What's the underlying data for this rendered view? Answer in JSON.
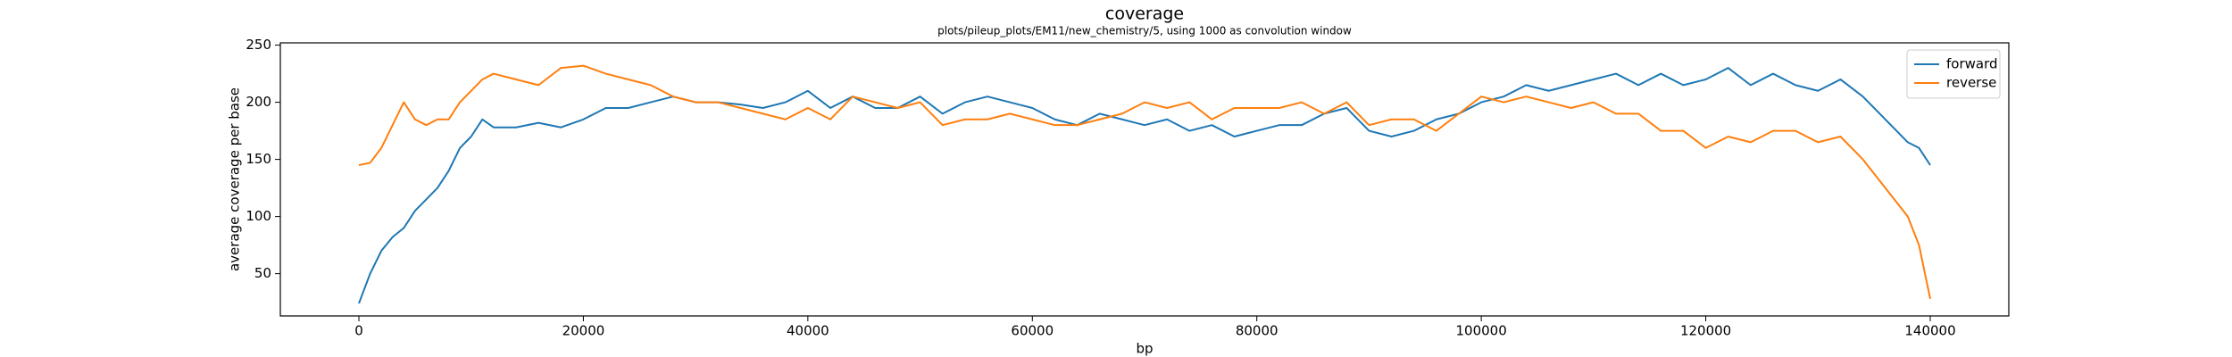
{
  "chart_data": {
    "type": "line",
    "title": "coverage",
    "subtitle": "plots/pileup_plots/EM11/new_chemistry/5, using 1000 as convolution window",
    "x_label": "bp",
    "y_label": "average coverage per base",
    "x": [
      0,
      1000,
      2000,
      3000,
      4000,
      5000,
      6000,
      7000,
      8000,
      9000,
      10000,
      11000,
      12000,
      14000,
      16000,
      18000,
      20000,
      22000,
      24000,
      26000,
      28000,
      30000,
      32000,
      34000,
      36000,
      38000,
      40000,
      42000,
      44000,
      46000,
      48000,
      50000,
      52000,
      54000,
      56000,
      58000,
      60000,
      62000,
      64000,
      66000,
      68000,
      70000,
      72000,
      74000,
      76000,
      78000,
      80000,
      82000,
      84000,
      86000,
      88000,
      90000,
      92000,
      94000,
      96000,
      98000,
      100000,
      102000,
      104000,
      106000,
      108000,
      110000,
      112000,
      114000,
      116000,
      118000,
      120000,
      122000,
      124000,
      126000,
      128000,
      130000,
      132000,
      134000,
      136000,
      138000,
      139000,
      140000
    ],
    "series": [
      {
        "name": "forward",
        "color": "#1f77b4",
        "values": [
          24,
          50,
          70,
          82,
          90,
          105,
          115,
          125,
          140,
          160,
          170,
          185,
          178,
          178,
          182,
          178,
          185,
          195,
          195,
          200,
          205,
          200,
          200,
          198,
          195,
          200,
          210,
          195,
          205,
          195,
          195,
          205,
          190,
          200,
          205,
          200,
          195,
          185,
          180,
          190,
          185,
          180,
          185,
          175,
          180,
          170,
          175,
          180,
          180,
          190,
          195,
          175,
          170,
          175,
          185,
          190,
          200,
          205,
          215,
          210,
          215,
          220,
          225,
          215,
          225,
          215,
          220,
          230,
          215,
          225,
          215,
          210,
          220,
          205,
          185,
          165,
          160,
          145
        ]
      },
      {
        "name": "reverse",
        "color": "#ff7f0e",
        "values": [
          145,
          147,
          160,
          180,
          200,
          185,
          180,
          185,
          185,
          200,
          210,
          220,
          225,
          220,
          215,
          230,
          232,
          225,
          220,
          215,
          205,
          200,
          200,
          195,
          190,
          185,
          195,
          185,
          205,
          200,
          195,
          200,
          180,
          185,
          185,
          190,
          185,
          180,
          180,
          185,
          190,
          200,
          195,
          200,
          185,
          195,
          195,
          195,
          200,
          190,
          200,
          180,
          185,
          185,
          175,
          190,
          205,
          200,
          205,
          200,
          195,
          200,
          190,
          190,
          175,
          175,
          160,
          170,
          165,
          175,
          175,
          165,
          170,
          150,
          125,
          100,
          75,
          28
        ]
      }
    ],
    "xlim": [
      -7000,
      147000
    ],
    "ylim": [
      13,
      252
    ],
    "xticks": [
      0,
      20000,
      40000,
      60000,
      80000,
      100000,
      120000,
      140000
    ],
    "yticks": [
      50,
      100,
      150,
      200,
      250
    ],
    "legend": "upper right"
  }
}
